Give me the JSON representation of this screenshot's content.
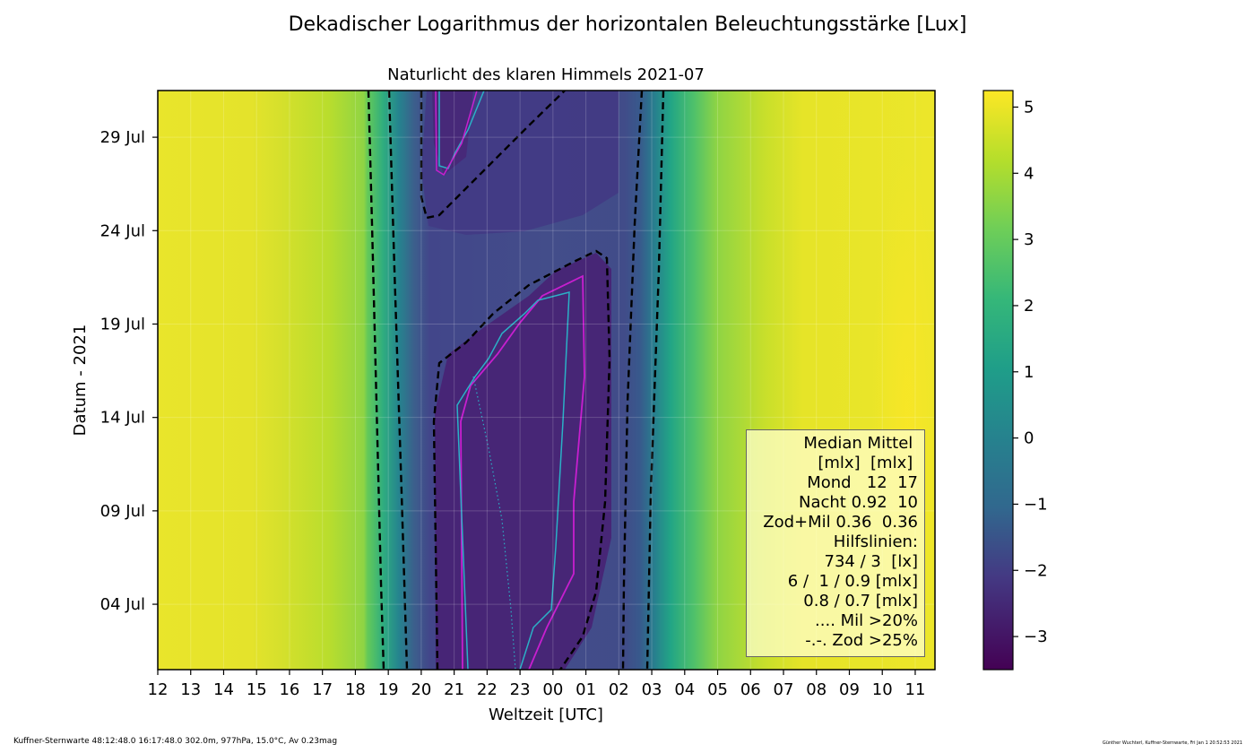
{
  "chart_data": {
    "type": "heatmap",
    "title": "Dekadischer Logarithmus der horizontalen Beleuchtungsstärke [Lux]",
    "subtitle": "Naturlicht des klaren Himmels 2021-07",
    "xlabel": "Weltzeit [UTC]",
    "ylabel": "Datum - 2021",
    "x_ticks": [
      "12",
      "13",
      "14",
      "15",
      "16",
      "17",
      "18",
      "19",
      "20",
      "21",
      "22",
      "23",
      "00",
      "01",
      "02",
      "03",
      "04",
      "05",
      "06",
      "07",
      "08",
      "09",
      "10",
      "11"
    ],
    "y_ticks": [
      {
        "label": "04 Jul",
        "day": 4
      },
      {
        "label": "09 Jul",
        "day": 9
      },
      {
        "label": "14 Jul",
        "day": 14
      },
      {
        "label": "19 Jul",
        "day": 19
      },
      {
        "label": "24 Jul",
        "day": 24
      },
      {
        "label": "29 Jul",
        "day": 29
      }
    ],
    "ylim": [
      0.5,
      31.5
    ],
    "colorbar": {
      "min": -3.5,
      "max": 5.25,
      "ticks": [
        "5",
        "4",
        "3",
        "2",
        "1",
        "0",
        "−1",
        "−2",
        "−3"
      ],
      "tick_values": [
        5,
        4,
        3,
        2,
        1,
        0,
        -1,
        -2,
        -3
      ]
    },
    "legend": {
      "position": "lower-right",
      "lines": [
        "Median Mittel ",
        "[mlx]  [mlx] ",
        "Mond   12  17",
        "Nacht 0.92  10",
        "Zod+Mil 0.36  0.36",
        "Hilfslinien:",
        "734 / 3  [lx]",
        "6 /  1 / 0.9 [mlx]",
        "0.8 / 0.7 [mlx]",
        ".... Mil >20%",
        "-.-. Zod >25%"
      ]
    }
  },
  "footer": {
    "left": "Kuffner-Sternwarte 48:12:48.0 16:17:48.0 302.0m,  977hPa, 15.0°C, Av 0.23mag",
    "right": "Günther Wuchterl, Kuffner-Sternwarte, Fri Jan  1 20:52:53 2021"
  }
}
